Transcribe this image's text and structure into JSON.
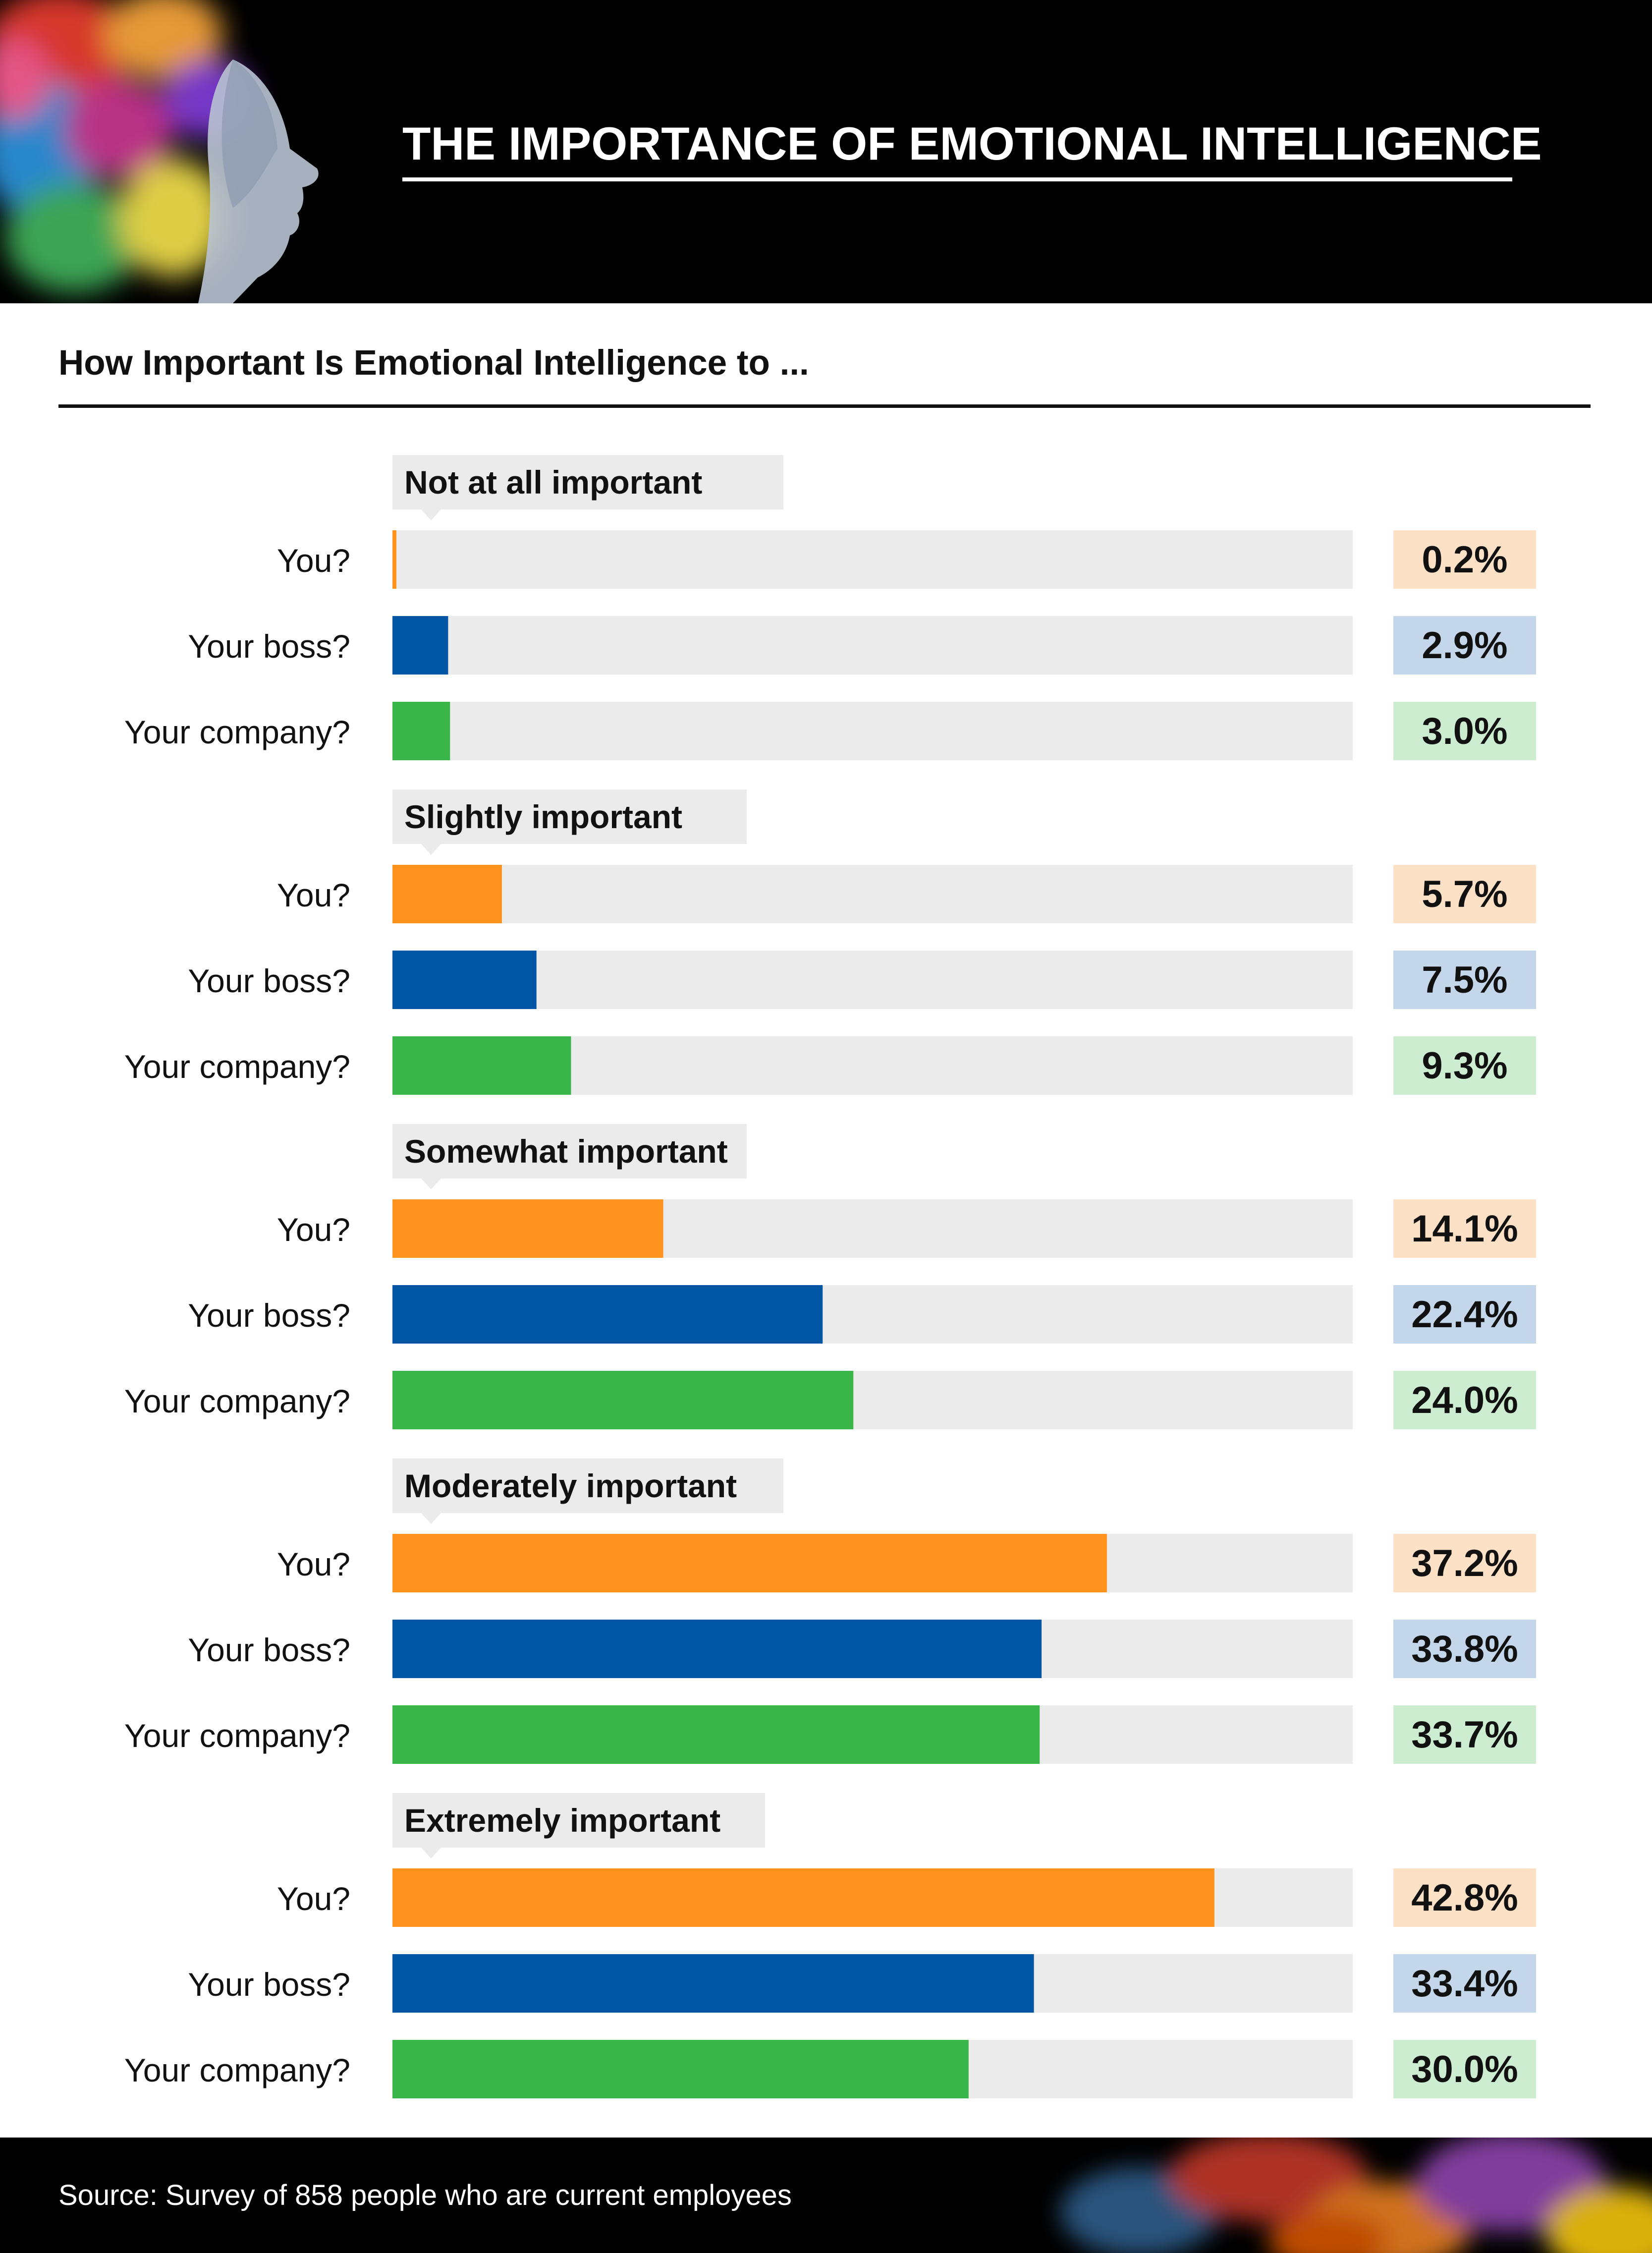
{
  "header": {
    "title": "THE IMPORTANCE OF EMOTIONAL INTELLIGENCE"
  },
  "colors": {
    "you": "#FF931E",
    "boss": "#0056A4",
    "company": "#39B54A",
    "you_badge": "#FDE1C7",
    "boss_badge": "#C4D7EA",
    "company_badge": "#CDEDD1",
    "track": "#EBEBEB",
    "header_bg": "#000000"
  },
  "chart_data": {
    "type": "bar",
    "title": "How Important Is Emotional Intelligence to ...",
    "categories": [
      "Not at all important",
      "Slightly important",
      "Somewhat important",
      "Moderately important",
      "Extremely important"
    ],
    "row_labels": [
      "You?",
      "Your boss?",
      "Your company?"
    ],
    "series": [
      {
        "name": "You?",
        "values": [
          0.2,
          5.7,
          14.1,
          37.2,
          42.8
        ]
      },
      {
        "name": "Your boss?",
        "values": [
          2.9,
          7.5,
          22.4,
          33.8,
          33.4
        ]
      },
      {
        "name": "Your company?",
        "values": [
          3.0,
          9.3,
          24.0,
          33.7,
          30.0
        ]
      }
    ],
    "value_labels": [
      [
        "0.2%",
        "2.9%",
        "3.0%"
      ],
      [
        "5.7%",
        "7.5%",
        "9.3%"
      ],
      [
        "14.1%",
        "22.4%",
        "24.0%"
      ],
      [
        "37.2%",
        "33.8%",
        "33.7%"
      ],
      [
        "42.8%",
        "33.4%",
        "30.0%"
      ]
    ],
    "xlim": [
      0,
      50
    ],
    "grid": false,
    "legend": "none"
  },
  "footer": {
    "source": "Source: Survey of 858 people who are current employees"
  }
}
